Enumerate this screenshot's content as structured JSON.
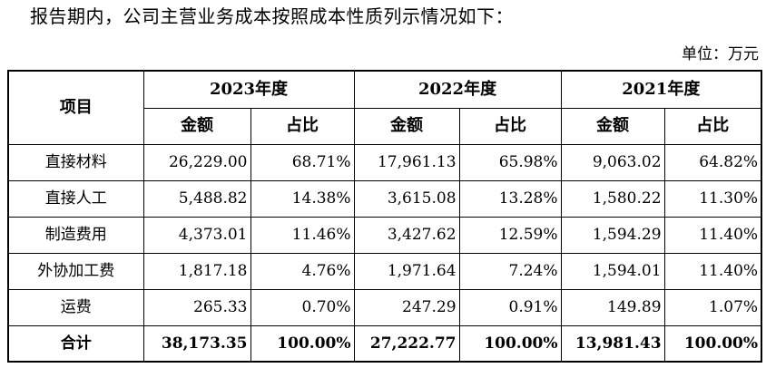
{
  "intro_text": "报告期内，公司主营业务成本按照成本性质列示情况如下：",
  "unit_text": "单位：万元",
  "table": {
    "item_header": "项目",
    "years": [
      "2023年度",
      "2022年度",
      "2021年度"
    ],
    "amount_header": "金额",
    "ratio_header": "占比",
    "rows": [
      {
        "item": "直接材料",
        "values": [
          "26,229.00",
          "68.71%",
          "17,961.13",
          "65.98%",
          "9,063.02",
          "64.82%"
        ]
      },
      {
        "item": "直接人工",
        "values": [
          "5,488.82",
          "14.38%",
          "3,615.08",
          "13.28%",
          "1,580.22",
          "11.30%"
        ]
      },
      {
        "item": "制造费用",
        "values": [
          "4,373.01",
          "11.46%",
          "3,427.62",
          "12.59%",
          "1,594.29",
          "11.40%"
        ]
      },
      {
        "item": "外协加工费",
        "values": [
          "1,817.18",
          "4.76%",
          "1,971.64",
          "7.24%",
          "1,594.01",
          "11.40%"
        ]
      },
      {
        "item": "运费",
        "values": [
          "265.33",
          "0.70%",
          "247.29",
          "0.91%",
          "149.89",
          "1.07%"
        ]
      }
    ],
    "total": {
      "item": "合计",
      "values": [
        "38,173.35",
        "100.00%",
        "27,222.77",
        "100.00%",
        "13,981.43",
        "100.00%"
      ]
    }
  }
}
